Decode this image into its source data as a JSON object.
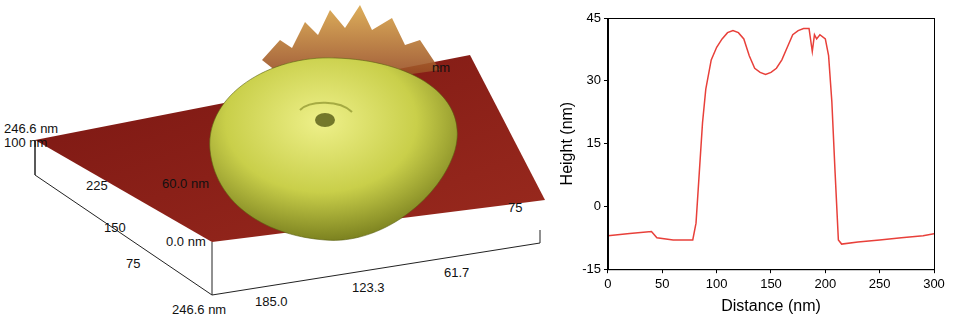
{
  "chart_data": {
    "type": "line",
    "x_label": "Distance (nm)",
    "y_label": "Height (nm)",
    "x": [
      0,
      20,
      40,
      45,
      60,
      78,
      81,
      84,
      87,
      90,
      95,
      100,
      105,
      110,
      115,
      120,
      125,
      130,
      135,
      140,
      145,
      150,
      155,
      160,
      165,
      170,
      175,
      180,
      185,
      188,
      190,
      192,
      195,
      200,
      203,
      206,
      209,
      212,
      215,
      230,
      250,
      270,
      290,
      300
    ],
    "values": [
      -7,
      -6.5,
      -6,
      -7.5,
      -8,
      -8,
      -4,
      8,
      20,
      28,
      35,
      38,
      40,
      41.5,
      42,
      41.5,
      40,
      36,
      33,
      32,
      31.5,
      32,
      33,
      35,
      38,
      41,
      42,
      42.5,
      42.5,
      37,
      41,
      40,
      41,
      40,
      36,
      25,
      8,
      -8,
      -9,
      -8.5,
      -8,
      -7.5,
      -7,
      -6.5
    ],
    "color": "#e8403a",
    "xlim": [
      0,
      300
    ],
    "xticks": [
      0,
      50,
      100,
      150,
      200,
      250,
      300
    ],
    "ylim": [
      -15,
      45
    ],
    "yticks": [
      -15,
      0,
      15,
      30,
      45
    ],
    "grid": false
  },
  "afm_image": {
    "depth_axis": {
      "end": "246.6 nm",
      "overlap": "100 nm",
      "ticks": [
        "225",
        "150",
        "75"
      ]
    },
    "height_axis": {
      "min": "0.0 nm",
      "max": "60.0 nm"
    },
    "width_axis": {
      "end": "246.6 nm",
      "ticks": [
        "185.0",
        "123.3",
        "61.7"
      ]
    },
    "back_labels": [
      "75",
      "nm"
    ]
  }
}
